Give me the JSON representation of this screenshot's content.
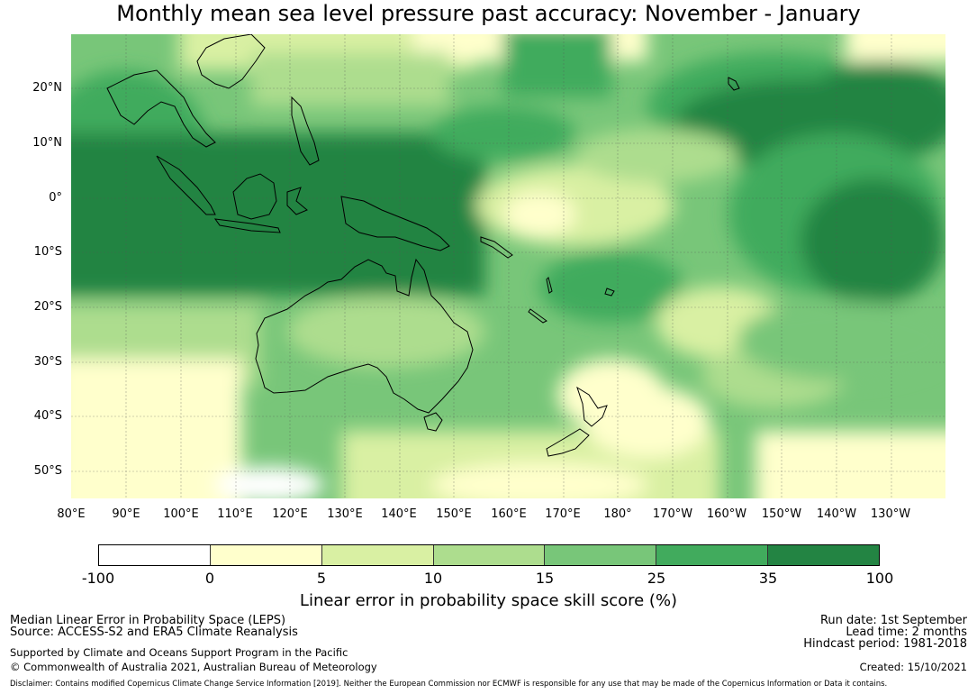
{
  "title": "Monthly mean sea level pressure past accuracy: November - January",
  "lat_labels": [
    "20°N",
    "10°N",
    "0°",
    "10°S",
    "20°S",
    "30°S",
    "40°S",
    "50°S"
  ],
  "lon_labels": [
    "80°E",
    "90°E",
    "100°E",
    "110°E",
    "120°E",
    "130°E",
    "140°E",
    "150°E",
    "160°E",
    "170°E",
    "180°",
    "170°W",
    "160°W",
    "150°W",
    "140°W",
    "130°W"
  ],
  "colorbar": {
    "ticks": [
      "-100",
      "0",
      "5",
      "10",
      "15",
      "25",
      "35",
      "100"
    ],
    "colors": [
      "#ffffff",
      "#ffffcc",
      "#d9f0a3",
      "#addd8e",
      "#78c679",
      "#41ab5d",
      "#238443"
    ],
    "label": "Linear error in probability space skill score (%)"
  },
  "footer": {
    "method": "Median Linear Error in Probability Space (LEPS)",
    "source": "Source: ACCESS-S2 and ERA5 Climate Reanalysis",
    "support": "Supported by Climate and Oceans Support Program in the Pacific",
    "copyright": "© Commonwealth of Australia 2021, Australian Bureau of Meteorology",
    "run_date": "Run date: 1st September",
    "lead_time": "Lead time: 2 months",
    "hindcast": "Hindcast period: 1981-2018",
    "created": "Created: 15/10/2021",
    "disclaimer": "Disclaimer: Contains modified Copernicus Climate Change Service Information [2019]. Neither the European Commission nor ECMWF is responsible for any use that may be made of the Copernicus Information or Data it contains."
  }
}
